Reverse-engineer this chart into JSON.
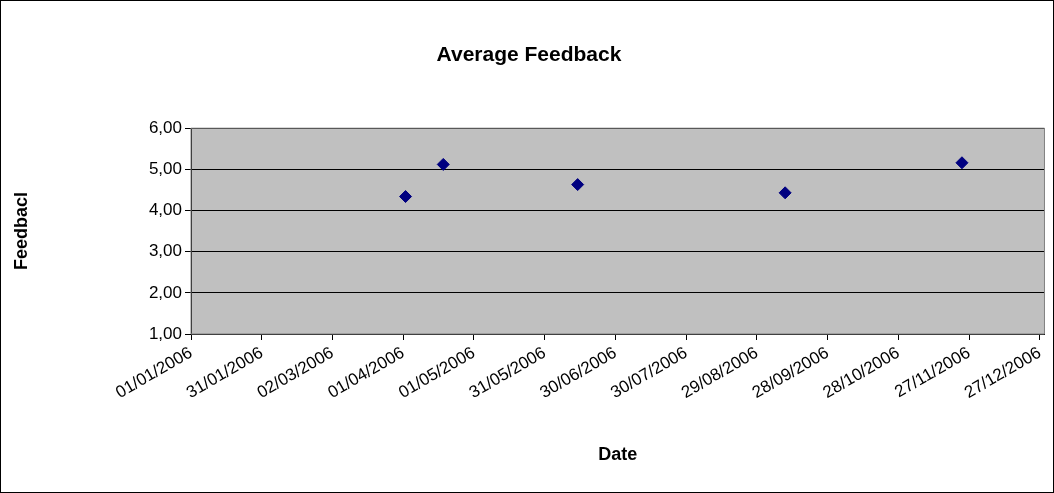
{
  "chart_data": {
    "type": "scatter",
    "title": "Average Feedback",
    "xlabel": "Date",
    "ylabel": "Feedbacl",
    "series": [
      {
        "color": "#000080",
        "x": [
          "2006-04-02",
          "2006-04-18",
          "2006-06-14",
          "2006-09-10",
          "2006-11-24"
        ],
        "values": [
          4.34,
          5.12,
          4.63,
          4.43,
          5.16
        ]
      }
    ],
    "xlim": [
      "2006-01-01",
      "2006-12-29"
    ],
    "xticks": [
      {
        "value": "2006-01-01",
        "label": "01/01/2006"
      },
      {
        "value": "2006-01-31",
        "label": "31/01/2006"
      },
      {
        "value": "2006-03-02",
        "label": "02/03/2006"
      },
      {
        "value": "2006-04-01",
        "label": "01/04/2006"
      },
      {
        "value": "2006-05-01",
        "label": "01/05/2006"
      },
      {
        "value": "2006-05-31",
        "label": "31/05/2006"
      },
      {
        "value": "2006-06-30",
        "label": "30/06/2006"
      },
      {
        "value": "2006-07-30",
        "label": "30/07/2006"
      },
      {
        "value": "2006-08-29",
        "label": "29/08/2006"
      },
      {
        "value": "2006-09-28",
        "label": "28/09/2006"
      },
      {
        "value": "2006-10-28",
        "label": "28/10/2006"
      },
      {
        "value": "2006-11-27",
        "label": "27/11/2006"
      },
      {
        "value": "2006-12-27",
        "label": "27/12/2006"
      }
    ],
    "ylim": [
      1,
      6
    ],
    "yticks": [
      {
        "value": 1,
        "label": "1,00"
      },
      {
        "value": 2,
        "label": "2,00"
      },
      {
        "value": 3,
        "label": "3,00"
      },
      {
        "value": 4,
        "label": "4,00"
      },
      {
        "value": 5,
        "label": "5,00"
      },
      {
        "value": 6,
        "label": "6,00"
      }
    ],
    "grid": "y",
    "legend": false,
    "marker": "diamond"
  }
}
